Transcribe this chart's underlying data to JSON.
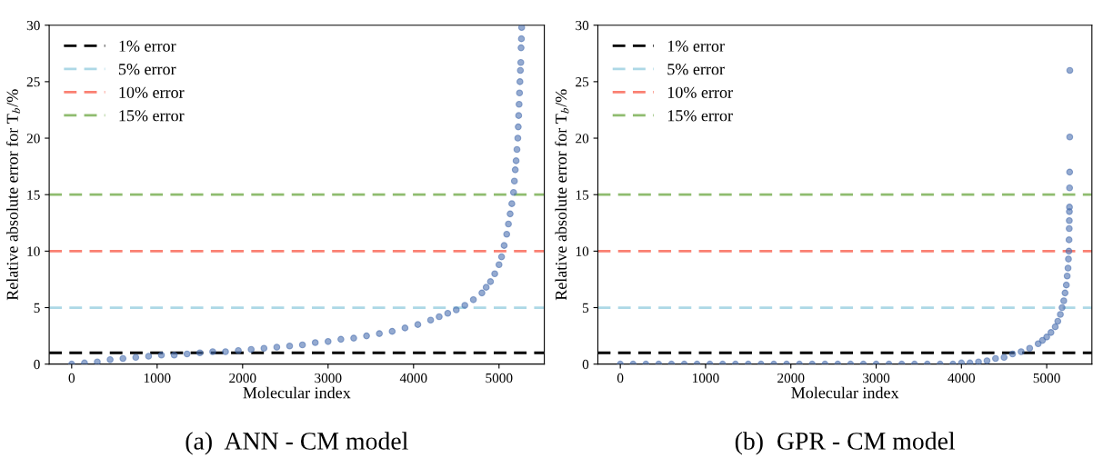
{
  "chart_data": [
    {
      "type": "scatter",
      "xlabel": "Molecular index",
      "ylabel": "Relative absolute error for T$_{b}$/%",
      "xlim": [
        -263,
        5530
      ],
      "ylim": [
        0,
        30
      ],
      "xticks": [
        0,
        1000,
        2000,
        3000,
        4000,
        5000
      ],
      "yticks": [
        0,
        5,
        10,
        15,
        20,
        25,
        30
      ],
      "legend": "top left",
      "grid": false,
      "marker": "circle",
      "series": [
        {
          "color": "#4c72b0",
          "x": [
            0,
            150,
            300,
            450,
            600,
            750,
            900,
            1050,
            1200,
            1350,
            1500,
            1650,
            1800,
            1950,
            2100,
            2250,
            2400,
            2550,
            2700,
            2850,
            3000,
            3150,
            3300,
            3450,
            3600,
            3750,
            3900,
            4050,
            4200,
            4300,
            4400,
            4500,
            4600,
            4700,
            4800,
            4850,
            4900,
            4950,
            5000,
            5030,
            5060,
            5090,
            5110,
            5130,
            5150,
            5170,
            5180,
            5190,
            5200,
            5210,
            5220,
            5225,
            5230,
            5235,
            5240,
            5245,
            5250,
            5255,
            5258,
            5262,
            5265
          ],
          "values": [
            0,
            0.1,
            0.2,
            0.4,
            0.5,
            0.6,
            0.7,
            0.8,
            0.8,
            0.9,
            1.0,
            1.1,
            1.1,
            1.2,
            1.3,
            1.4,
            1.5,
            1.6,
            1.7,
            1.9,
            2.0,
            2.2,
            2.3,
            2.5,
            2.7,
            2.9,
            3.2,
            3.5,
            3.9,
            4.2,
            4.5,
            4.8,
            5.2,
            5.7,
            6.3,
            6.8,
            7.3,
            8.0,
            8.8,
            9.5,
            10.5,
            11.5,
            12.4,
            13.3,
            14.2,
            15.2,
            16.2,
            17.2,
            18.0,
            19.0,
            20.0,
            21.0,
            22.0,
            23.0,
            24.0,
            25.0,
            26.0,
            26.7,
            28.0,
            28.8,
            29.8
          ]
        }
      ],
      "ref_lines": [
        {
          "axis": "y",
          "value": 1,
          "label": "1% error",
          "color": "#000000",
          "line_style": "dashed"
        },
        {
          "axis": "y",
          "value": 5,
          "label": "5% error",
          "color": "#add8e6",
          "line_style": "dashed"
        },
        {
          "axis": "y",
          "value": 10,
          "label": "10% error",
          "color": "#fa8072",
          "line_style": "dashed"
        },
        {
          "axis": "y",
          "value": 15,
          "label": "15% error",
          "color": "#8fbc6f",
          "line_style": "dashed"
        }
      ],
      "annotations": [
        "(a)  ANN - CM model"
      ]
    },
    {
      "type": "scatter",
      "xlabel": "Molecular index",
      "ylabel": "Relative absolute error for T$_{b}$/%",
      "xlim": [
        -263,
        5530
      ],
      "ylim": [
        0,
        30
      ],
      "xticks": [
        0,
        1000,
        2000,
        3000,
        4000,
        5000
      ],
      "yticks": [
        0,
        5,
        10,
        15,
        20,
        25,
        30
      ],
      "legend": "top left",
      "grid": false,
      "marker": "circle",
      "series": [
        {
          "color": "#4c72b0",
          "x": [
            0,
            150,
            300,
            450,
            600,
            750,
            900,
            1050,
            1200,
            1350,
            1500,
            1650,
            1800,
            1950,
            2100,
            2250,
            2400,
            2550,
            2700,
            2850,
            3000,
            3150,
            3300,
            3450,
            3600,
            3750,
            3900,
            4000,
            4100,
            4200,
            4300,
            4400,
            4500,
            4600,
            4700,
            4800,
            4900,
            4950,
            5000,
            5050,
            5100,
            5130,
            5160,
            5180,
            5200,
            5215,
            5230,
            5240,
            5250,
            5255,
            5260,
            5262,
            5264,
            5265,
            5266,
            5267,
            5268,
            5269,
            5270,
            5271
          ],
          "values": [
            0,
            0,
            0,
            0,
            0,
            0,
            0,
            0,
            0,
            0,
            0,
            0,
            0,
            0,
            0,
            0,
            0,
            0,
            0,
            0,
            0,
            0,
            0,
            0,
            0,
            0,
            0,
            0.1,
            0.1,
            0.2,
            0.3,
            0.5,
            0.6,
            0.9,
            1.1,
            1.4,
            1.8,
            2.1,
            2.4,
            2.8,
            3.3,
            3.8,
            4.4,
            5.0,
            5.6,
            6.3,
            7.0,
            7.8,
            8.5,
            9.3,
            10.0,
            11.0,
            12.0,
            12.7,
            13.5,
            13.9,
            15.6,
            17.0,
            20.1,
            26.0
          ]
        }
      ],
      "ref_lines": [
        {
          "axis": "y",
          "value": 1,
          "label": "1% error",
          "color": "#000000",
          "line_style": "dashed"
        },
        {
          "axis": "y",
          "value": 5,
          "label": "5% error",
          "color": "#add8e6",
          "line_style": "dashed"
        },
        {
          "axis": "y",
          "value": 10,
          "label": "10% error",
          "color": "#fa8072",
          "line_style": "dashed"
        },
        {
          "axis": "y",
          "value": 15,
          "label": "15% error",
          "color": "#8fbc6f",
          "line_style": "dashed"
        }
      ],
      "annotations": [
        "(b)  GPR - CM model"
      ]
    }
  ]
}
